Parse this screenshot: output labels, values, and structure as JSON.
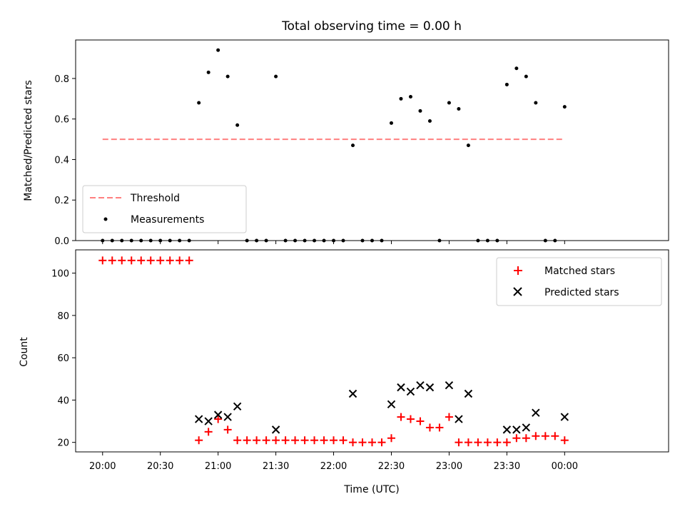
{
  "chart_data": [
    {
      "type": "scatter",
      "title": "Total observing time = 0.00 h",
      "ylabel": "Matched/Predicted stars",
      "xlabel": "",
      "ylim": [
        0,
        0.99
      ],
      "yticks": [
        0.0,
        0.2,
        0.4,
        0.6,
        0.8
      ],
      "ytick_labels": [
        "0.0",
        "0.2",
        "0.4",
        "0.6",
        "0.8"
      ],
      "legend_position": "lower-left",
      "threshold": {
        "name": "Threshold",
        "value": 0.5,
        "color": "#ff7f7f",
        "x_start": "20:00",
        "x_end": "00:00"
      },
      "measurements": {
        "name": "Measurements",
        "color": "#000000",
        "points": [
          {
            "x": "20:00",
            "y": 0
          },
          {
            "x": "20:05",
            "y": 0
          },
          {
            "x": "20:10",
            "y": 0
          },
          {
            "x": "20:15",
            "y": 0
          },
          {
            "x": "20:20",
            "y": 0
          },
          {
            "x": "20:25",
            "y": 0
          },
          {
            "x": "20:30",
            "y": 0
          },
          {
            "x": "20:35",
            "y": 0
          },
          {
            "x": "20:40",
            "y": 0
          },
          {
            "x": "20:45",
            "y": 0
          },
          {
            "x": "20:50",
            "y": 0.68
          },
          {
            "x": "20:55",
            "y": 0.83
          },
          {
            "x": "21:00",
            "y": 0.94
          },
          {
            "x": "21:05",
            "y": 0.81
          },
          {
            "x": "21:10",
            "y": 0.57
          },
          {
            "x": "21:15",
            "y": 0
          },
          {
            "x": "21:20",
            "y": 0
          },
          {
            "x": "21:25",
            "y": 0
          },
          {
            "x": "21:30",
            "y": 0.81
          },
          {
            "x": "21:35",
            "y": 0
          },
          {
            "x": "21:40",
            "y": 0
          },
          {
            "x": "21:45",
            "y": 0
          },
          {
            "x": "21:50",
            "y": 0
          },
          {
            "x": "21:55",
            "y": 0
          },
          {
            "x": "22:00",
            "y": 0
          },
          {
            "x": "22:05",
            "y": 0
          },
          {
            "x": "22:10",
            "y": 0.47
          },
          {
            "x": "22:15",
            "y": 0
          },
          {
            "x": "22:20",
            "y": 0
          },
          {
            "x": "22:25",
            "y": 0
          },
          {
            "x": "22:30",
            "y": 0.58
          },
          {
            "x": "22:35",
            "y": 0.7
          },
          {
            "x": "22:40",
            "y": 0.71
          },
          {
            "x": "22:45",
            "y": 0.64
          },
          {
            "x": "22:50",
            "y": 0.59
          },
          {
            "x": "22:55",
            "y": 0
          },
          {
            "x": "23:00",
            "y": 0.68
          },
          {
            "x": "23:05",
            "y": 0.65
          },
          {
            "x": "23:10",
            "y": 0.47
          },
          {
            "x": "23:15",
            "y": 0
          },
          {
            "x": "23:20",
            "y": 0
          },
          {
            "x": "23:25",
            "y": 0
          },
          {
            "x": "23:30",
            "y": 0.77
          },
          {
            "x": "23:35",
            "y": 0.85
          },
          {
            "x": "23:40",
            "y": 0.81
          },
          {
            "x": "23:45",
            "y": 0.68
          },
          {
            "x": "23:50",
            "y": 0
          },
          {
            "x": "23:55",
            "y": 0
          },
          {
            "x": "00:00",
            "y": 0.66
          }
        ]
      }
    },
    {
      "type": "scatter",
      "title": "",
      "xlabel": "Time (UTC)",
      "ylabel": "Count",
      "ylim": [
        15.5,
        111
      ],
      "yticks": [
        20,
        40,
        60,
        80,
        100
      ],
      "ytick_labels": [
        "20",
        "40",
        "60",
        "80",
        "100"
      ],
      "xlim": [
        "19:46",
        "00:54"
      ],
      "xticks": [
        "20:00",
        "20:30",
        "21:00",
        "21:30",
        "22:00",
        "22:30",
        "23:00",
        "23:30",
        "00:00"
      ],
      "legend_position": "upper-right",
      "series": [
        {
          "name": "Matched stars",
          "marker": "plus",
          "color": "#ff0000",
          "points": [
            {
              "x": "20:00",
              "y": 106
            },
            {
              "x": "20:05",
              "y": 106
            },
            {
              "x": "20:10",
              "y": 106
            },
            {
              "x": "20:15",
              "y": 106
            },
            {
              "x": "20:20",
              "y": 106
            },
            {
              "x": "20:25",
              "y": 106
            },
            {
              "x": "20:30",
              "y": 106
            },
            {
              "x": "20:35",
              "y": 106
            },
            {
              "x": "20:40",
              "y": 106
            },
            {
              "x": "20:45",
              "y": 106
            },
            {
              "x": "20:50",
              "y": 21
            },
            {
              "x": "20:55",
              "y": 25
            },
            {
              "x": "21:00",
              "y": 31
            },
            {
              "x": "21:05",
              "y": 26
            },
            {
              "x": "21:10",
              "y": 21
            },
            {
              "x": "21:15",
              "y": 21
            },
            {
              "x": "21:20",
              "y": 21
            },
            {
              "x": "21:25",
              "y": 21
            },
            {
              "x": "21:30",
              "y": 21
            },
            {
              "x": "21:35",
              "y": 21
            },
            {
              "x": "21:40",
              "y": 21
            },
            {
              "x": "21:45",
              "y": 21
            },
            {
              "x": "21:50",
              "y": 21
            },
            {
              "x": "21:55",
              "y": 21
            },
            {
              "x": "22:00",
              "y": 21
            },
            {
              "x": "22:05",
              "y": 21
            },
            {
              "x": "22:10",
              "y": 20
            },
            {
              "x": "22:15",
              "y": 20
            },
            {
              "x": "22:20",
              "y": 20
            },
            {
              "x": "22:25",
              "y": 20
            },
            {
              "x": "22:30",
              "y": 22
            },
            {
              "x": "22:35",
              "y": 32
            },
            {
              "x": "22:40",
              "y": 31
            },
            {
              "x": "22:45",
              "y": 30
            },
            {
              "x": "22:50",
              "y": 27
            },
            {
              "x": "22:55",
              "y": 27
            },
            {
              "x": "23:00",
              "y": 32
            },
            {
              "x": "23:05",
              "y": 20
            },
            {
              "x": "23:10",
              "y": 20
            },
            {
              "x": "23:15",
              "y": 20
            },
            {
              "x": "23:20",
              "y": 20
            },
            {
              "x": "23:25",
              "y": 20
            },
            {
              "x": "23:30",
              "y": 20
            },
            {
              "x": "23:35",
              "y": 22
            },
            {
              "x": "23:40",
              "y": 22
            },
            {
              "x": "23:45",
              "y": 23
            },
            {
              "x": "23:50",
              "y": 23
            },
            {
              "x": "23:55",
              "y": 23
            },
            {
              "x": "00:00",
              "y": 21
            }
          ]
        },
        {
          "name": "Predicted stars",
          "marker": "x",
          "color": "#000000",
          "points": [
            {
              "x": "20:50",
              "y": 31
            },
            {
              "x": "20:55",
              "y": 30
            },
            {
              "x": "21:00",
              "y": 33
            },
            {
              "x": "21:05",
              "y": 32
            },
            {
              "x": "21:10",
              "y": 37
            },
            {
              "x": "21:30",
              "y": 26
            },
            {
              "x": "22:10",
              "y": 43
            },
            {
              "x": "22:30",
              "y": 38
            },
            {
              "x": "22:35",
              "y": 46
            },
            {
              "x": "22:40",
              "y": 44
            },
            {
              "x": "22:45",
              "y": 47
            },
            {
              "x": "22:50",
              "y": 46
            },
            {
              "x": "23:00",
              "y": 47
            },
            {
              "x": "23:05",
              "y": 31
            },
            {
              "x": "23:10",
              "y": 43
            },
            {
              "x": "23:30",
              "y": 26
            },
            {
              "x": "23:35",
              "y": 26
            },
            {
              "x": "23:40",
              "y": 27
            },
            {
              "x": "23:45",
              "y": 34
            },
            {
              "x": "00:00",
              "y": 32
            }
          ]
        }
      ]
    }
  ]
}
